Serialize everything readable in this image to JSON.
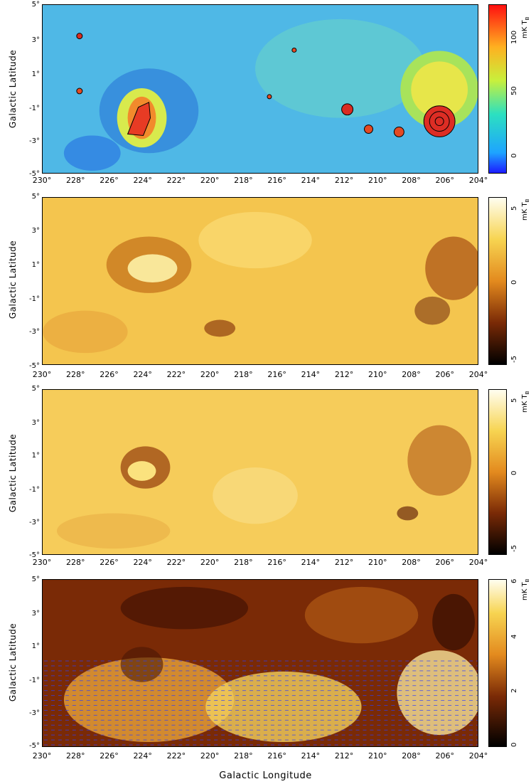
{
  "lat_ticks": [
    "5°",
    "3°",
    "1°",
    "-1°",
    "-3°",
    "-5°"
  ],
  "lon_ticks": [
    "230°",
    "228°",
    "226°",
    "224°",
    "222°",
    "220°",
    "218°",
    "216°",
    "214°",
    "212°",
    "210°",
    "208°",
    "206°",
    "204°"
  ],
  "ylabel": "Galactic Latitude",
  "xlabel": "Galactic Longitude",
  "panels": [
    {
      "unit": "mK T",
      "unit_sub": "B",
      "cbar_ticks": [
        "100",
        "50",
        "0"
      ],
      "colormap": "jet"
    },
    {
      "unit": "mK T",
      "unit_sub": "B",
      "cbar_ticks": [
        "5",
        "0",
        "-5"
      ],
      "colormap": "heat"
    },
    {
      "unit": "mK T",
      "unit_sub": "B",
      "cbar_ticks": [
        "5",
        "0",
        "-5"
      ],
      "colormap": "heat"
    },
    {
      "unit": "mK T",
      "unit_sub": "B",
      "cbar_ticks": [
        "6",
        "4",
        "2",
        "0"
      ],
      "colormap": "heat"
    }
  ],
  "colors": {
    "jet_bg": "#55c6e0",
    "heat_bg": "#f6c24a",
    "vector": "#2a3cff",
    "contour": "#000000"
  }
}
